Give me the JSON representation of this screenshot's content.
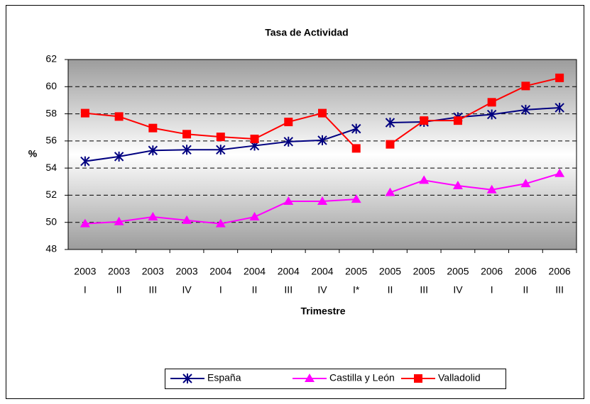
{
  "chart_data": {
    "type": "line",
    "title": "Tasa de Actividad",
    "x_label": "Trimestre",
    "y_label": "%",
    "categories": [
      [
        "2003",
        "I"
      ],
      [
        "2003",
        "II"
      ],
      [
        "2003",
        "III"
      ],
      [
        "2003",
        "IV"
      ],
      [
        "2004",
        "I"
      ],
      [
        "2004",
        "II"
      ],
      [
        "2004",
        "III"
      ],
      [
        "2004",
        "IV"
      ],
      [
        "2005",
        "I*"
      ],
      [
        "2005",
        "II"
      ],
      [
        "2005",
        "III"
      ],
      [
        "2005",
        "IV"
      ],
      [
        "2006",
        "I"
      ],
      [
        "2006",
        "II"
      ],
      [
        "2006",
        "III"
      ]
    ],
    "series": [
      {
        "name": "España",
        "color": "#000080",
        "marker": "star",
        "values": [
          54.5,
          54.85,
          55.3,
          55.35,
          55.35,
          55.65,
          55.95,
          56.05,
          56.9,
          57.35,
          57.4,
          57.75,
          57.95,
          58.3,
          58.45
        ]
      },
      {
        "name": "Castilla y León",
        "color": "#ff00ff",
        "marker": "triangle",
        "values": [
          49.9,
          50.05,
          50.4,
          50.15,
          49.9,
          50.4,
          51.55,
          51.55,
          51.7,
          52.2,
          53.1,
          52.7,
          52.4,
          52.85,
          53.6
        ]
      },
      {
        "name": "Valladolid",
        "color": "#ff0000",
        "marker": "square",
        "values": [
          58.05,
          57.8,
          56.95,
          56.5,
          56.3,
          56.15,
          57.4,
          58.05,
          55.45,
          55.75,
          57.5,
          57.5,
          58.85,
          60.05,
          60.65
        ]
      }
    ],
    "ylim": [
      48,
      62
    ],
    "yticks": [
      48,
      50,
      52,
      54,
      56,
      58,
      60,
      62
    ],
    "grid": true,
    "legend": "bottom"
  }
}
